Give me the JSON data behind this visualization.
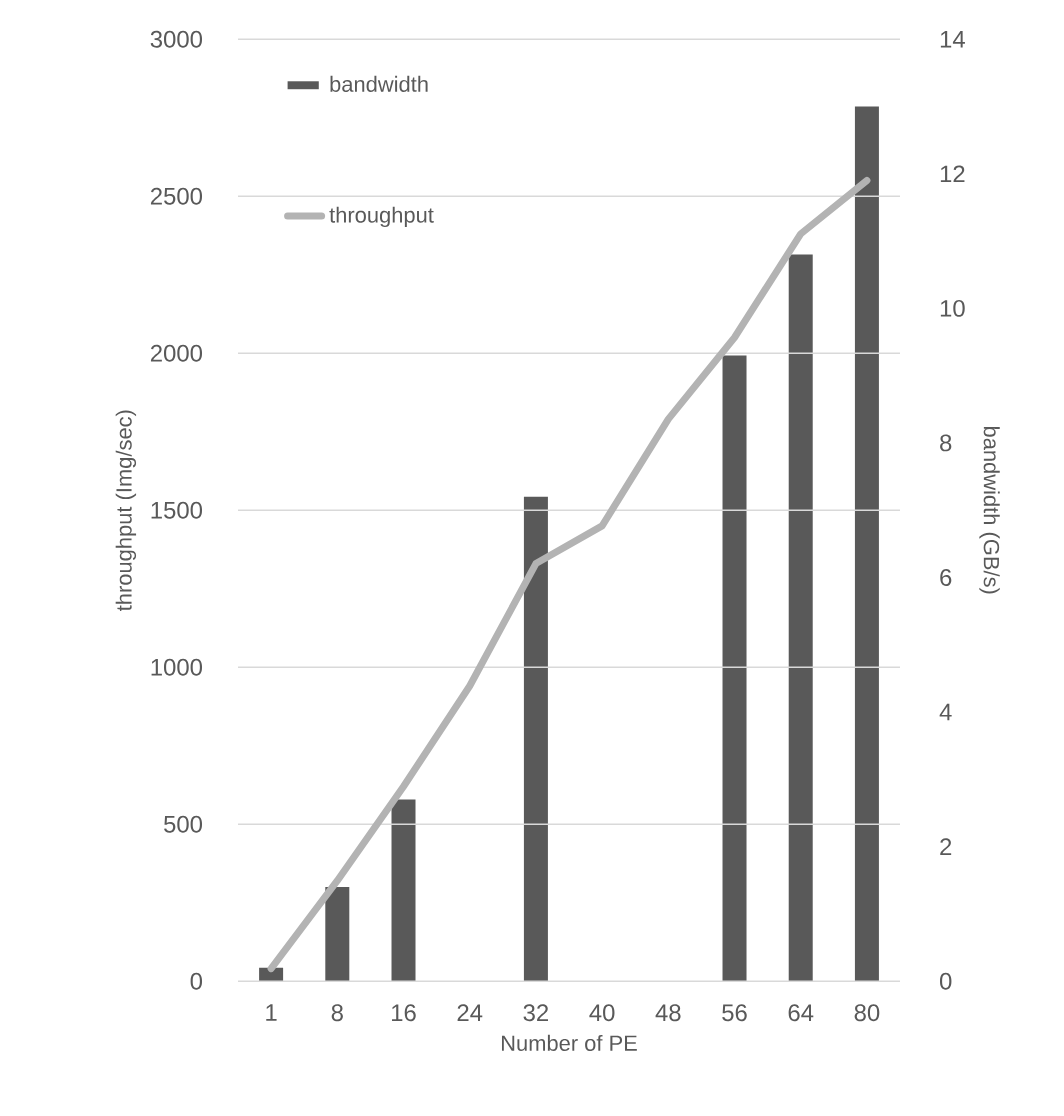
{
  "chart_data": {
    "type": "bar",
    "xlabel": "Number of PE",
    "ylabel": "throughput (Img/sec)",
    "y2label": "bandwidth (GB/s)",
    "categories": [
      "1",
      "8",
      "16",
      "24",
      "32",
      "40",
      "48",
      "56",
      "64",
      "80"
    ],
    "series": [
      {
        "name": "bandwidth",
        "axis": "y2",
        "color": "#595959",
        "values": [
          0.2,
          1.4,
          2.7,
          null,
          7.2,
          null,
          null,
          9.3,
          10.8,
          13.0
        ]
      },
      {
        "name": "throughput",
        "type": "line",
        "axis": "y",
        "color": "#b3b3b3",
        "values": [
          40,
          320,
          620,
          940,
          1330,
          1450,
          1790,
          2050,
          2380,
          2550
        ]
      }
    ],
    "ylim": [
      0,
      3000
    ],
    "yticks": [
      0,
      500,
      1000,
      1500,
      2000,
      2500,
      3000
    ],
    "y2lim": [
      0,
      14
    ],
    "y2ticks": [
      0,
      2,
      4,
      6,
      8,
      10,
      12,
      14
    ],
    "grid": "y",
    "legend": "top left"
  }
}
